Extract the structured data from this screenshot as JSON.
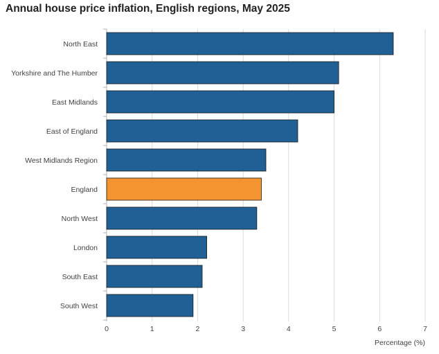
{
  "chart_data": {
    "type": "bar",
    "orientation": "horizontal",
    "title": "Annual house price inflation, English regions, May 2025",
    "xlabel": "Percentage (%)",
    "ylabel": "",
    "categories": [
      "North East",
      "Yorkshire and The Humber",
      "East Midlands",
      "East of England",
      "West Midlands Region",
      "England",
      "North West",
      "London",
      "South East",
      "South West"
    ],
    "values": [
      6.3,
      5.1,
      5.0,
      4.2,
      3.5,
      3.4,
      3.3,
      2.2,
      2.1,
      1.9
    ],
    "xlim": [
      0,
      7
    ],
    "xticks": [
      "0",
      "1",
      "2",
      "3",
      "4",
      "5",
      "6",
      "7"
    ],
    "grid": true,
    "highlight_category": "England",
    "colors": {
      "bar": "#206095",
      "highlight": "#f39431",
      "grid": "#d9d9d9",
      "bar_stroke": "#1a1a1a"
    }
  }
}
